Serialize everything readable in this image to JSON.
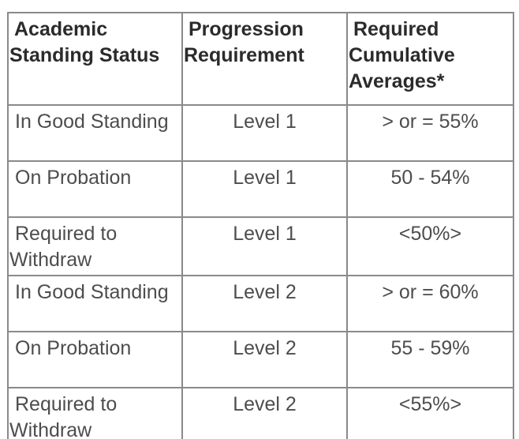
{
  "table": {
    "columns": [
      {
        "label": "Academic Standing Status"
      },
      {
        "label": "Progression Requirement"
      },
      {
        "label": "Required Cumulative Averages*"
      }
    ],
    "rows": [
      {
        "status": "In Good Standing",
        "level": "Level 1",
        "average": "> or = 55%"
      },
      {
        "status": "On Probation",
        "level": "Level 1",
        "average": "50 - 54%"
      },
      {
        "status": "Required to Withdraw",
        "level": "Level 1",
        "average": "<50%>"
      },
      {
        "status": "In Good Standing",
        "level": "Level 2",
        "average": "> or = 60%"
      },
      {
        "status": "On Probation",
        "level": "Level 2",
        "average": "55 - 59%"
      },
      {
        "status": "Required to Withdraw",
        "level": "Level 2",
        "average": "<55%>"
      }
    ],
    "colors": {
      "outer_border": "#696969",
      "inner_border": "#8a8a8a",
      "header_text": "#2b2b2b",
      "body_text": "#4d4d4d",
      "background": "#ffffff"
    }
  }
}
